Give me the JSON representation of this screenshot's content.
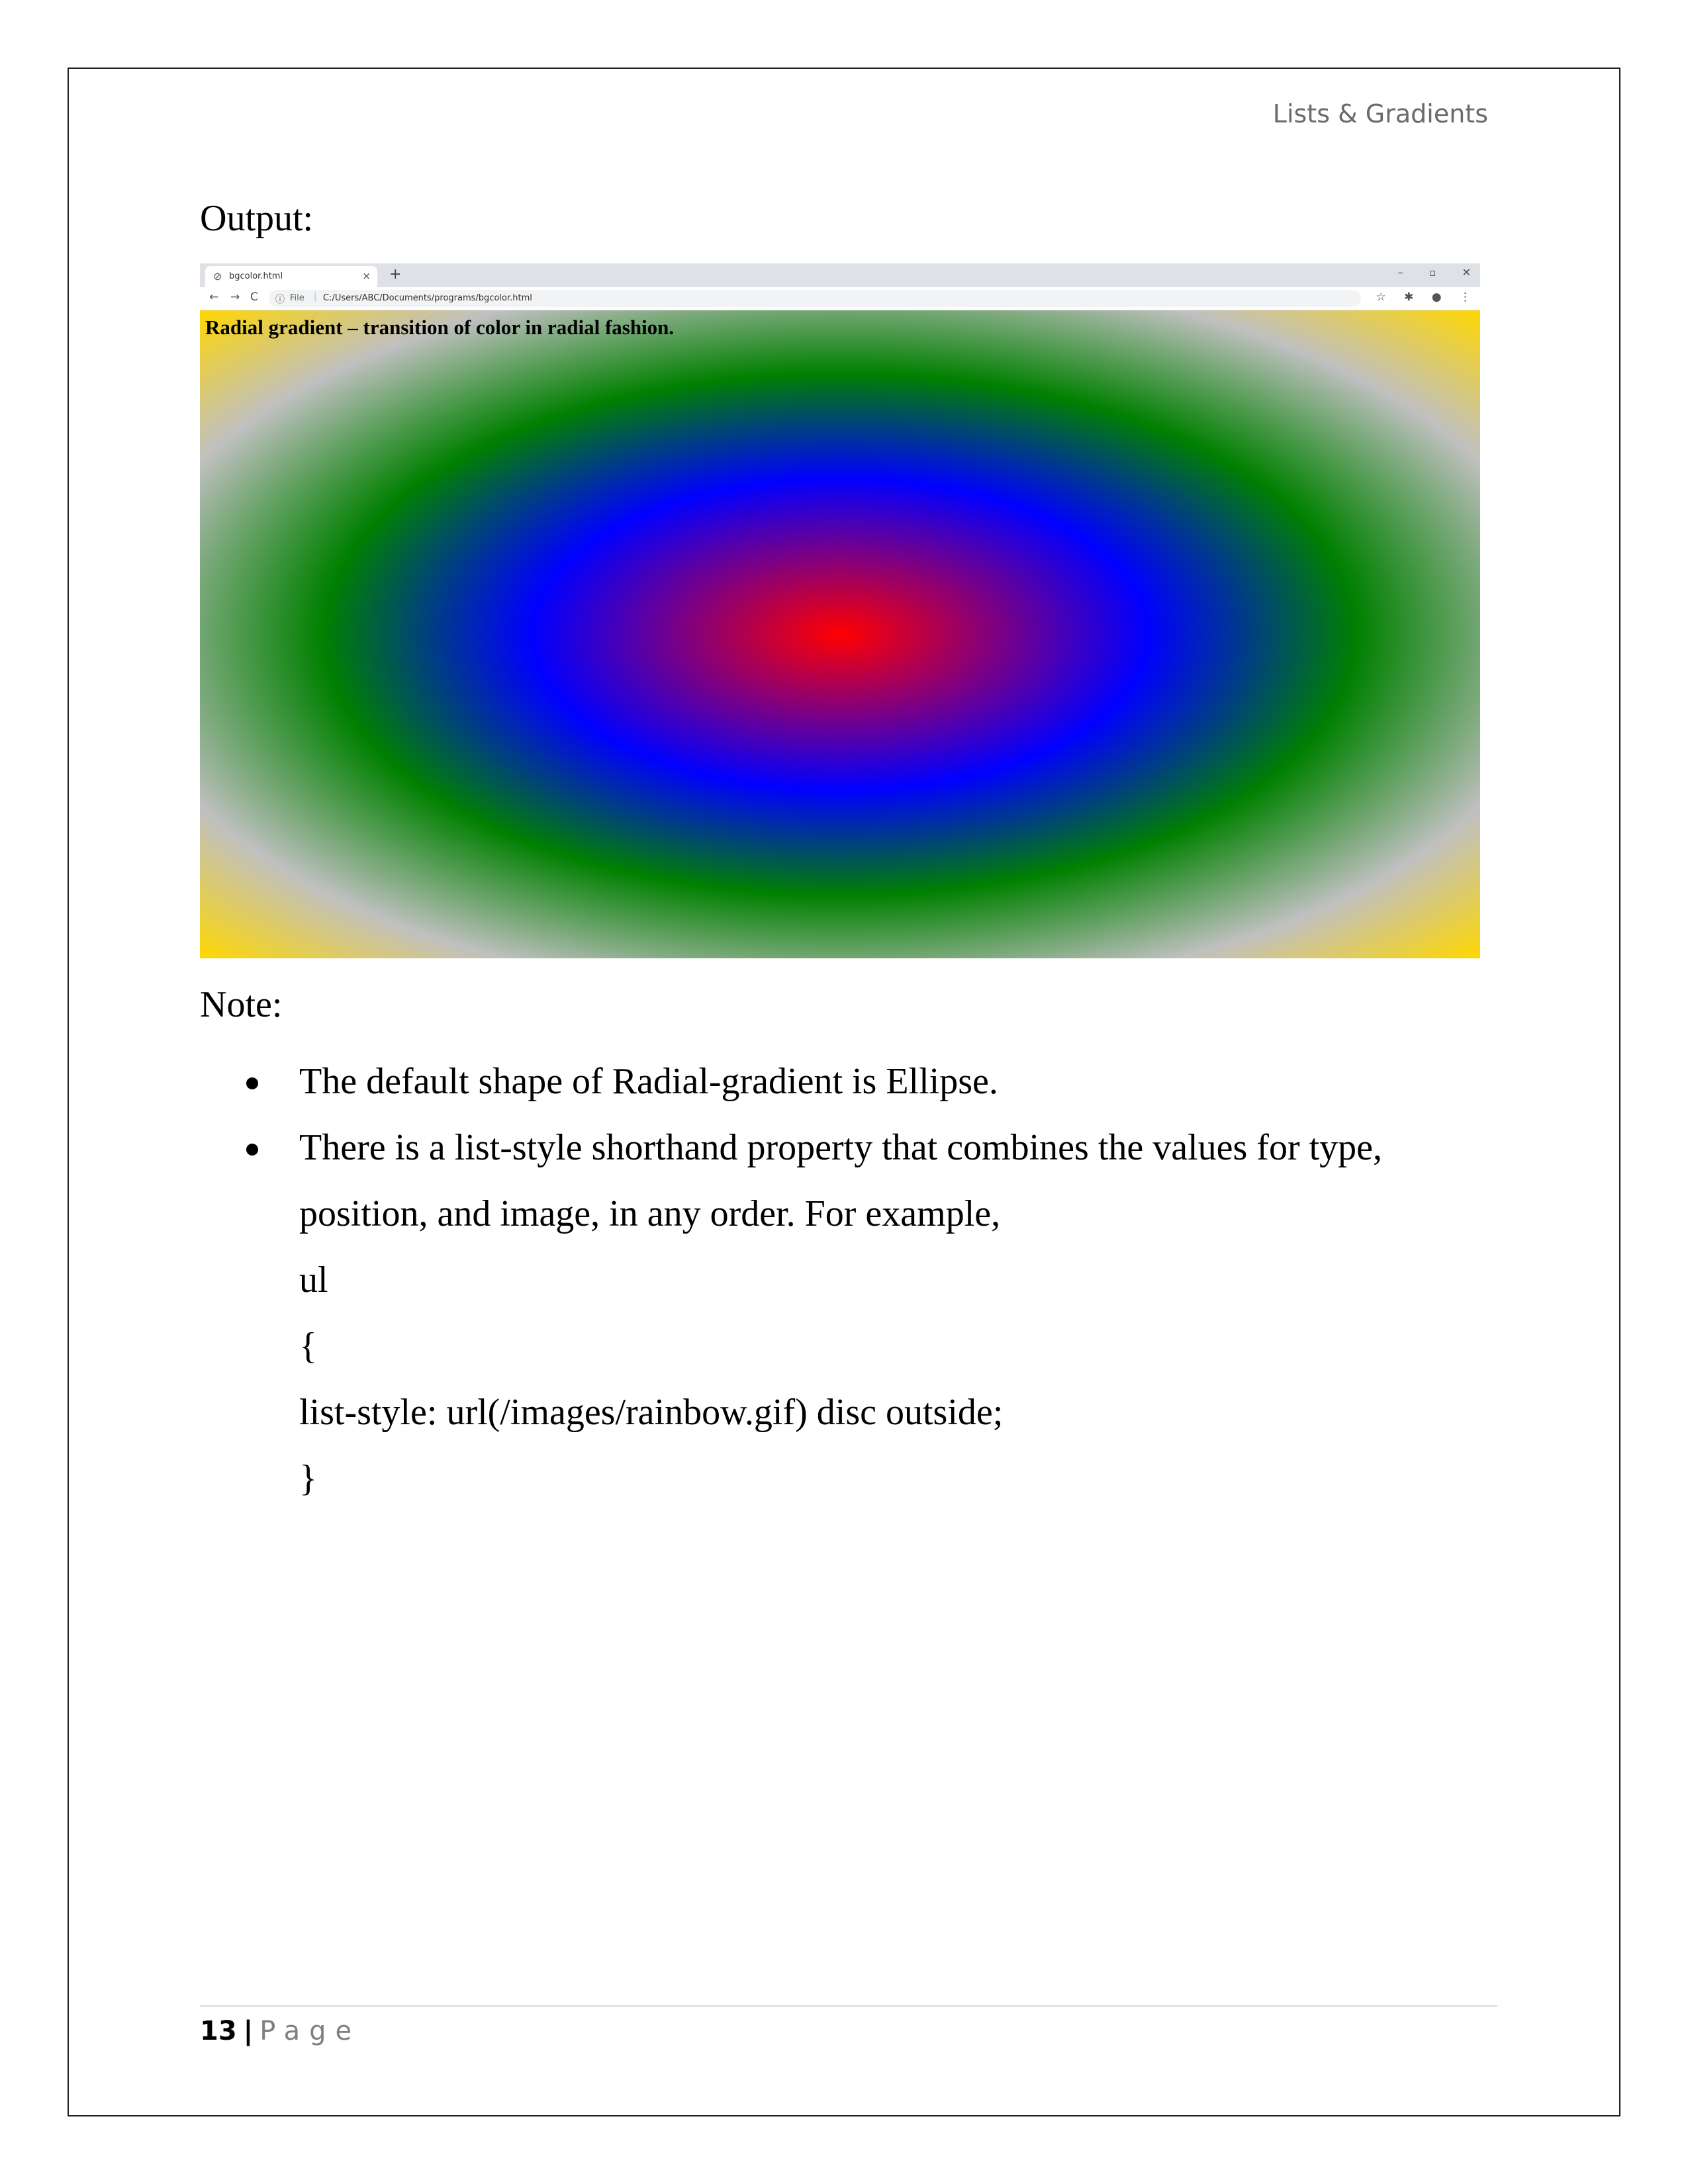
{
  "header": {
    "running_title": "Lists & Gradients"
  },
  "output_label": "Output:",
  "browser": {
    "tab_title": "bgcolor.html",
    "tab_close": "×",
    "new_tab": "+",
    "window_controls": [
      "–",
      "▫",
      "✕"
    ],
    "nav": {
      "back": "←",
      "forward": "→",
      "reload": "C"
    },
    "address": {
      "scheme_label": "File",
      "url": "C:/Users/ABC/Documents/programs/bgcolor.html"
    },
    "page_heading": "Radial gradient – transition of color in radial fashion.",
    "gradient_colors": [
      "#ff0000",
      "#0000ff",
      "#008000",
      "#c0c0c0",
      "#ffd700"
    ]
  },
  "note": {
    "label": "Note:",
    "items": [
      {
        "lines": [
          "The default shape of Radial-gradient is Ellipse."
        ]
      },
      {
        "lines": [
          "There is a list-style shorthand property that combines the values for type,",
          "position, and image, in any order. For example,",
          "ul",
          "{",
          "list-style: url(/images/rainbow.gif) disc outside;",
          "}"
        ]
      }
    ]
  },
  "footer": {
    "page_number": "13",
    "separator": "|",
    "page_word": "Page"
  }
}
